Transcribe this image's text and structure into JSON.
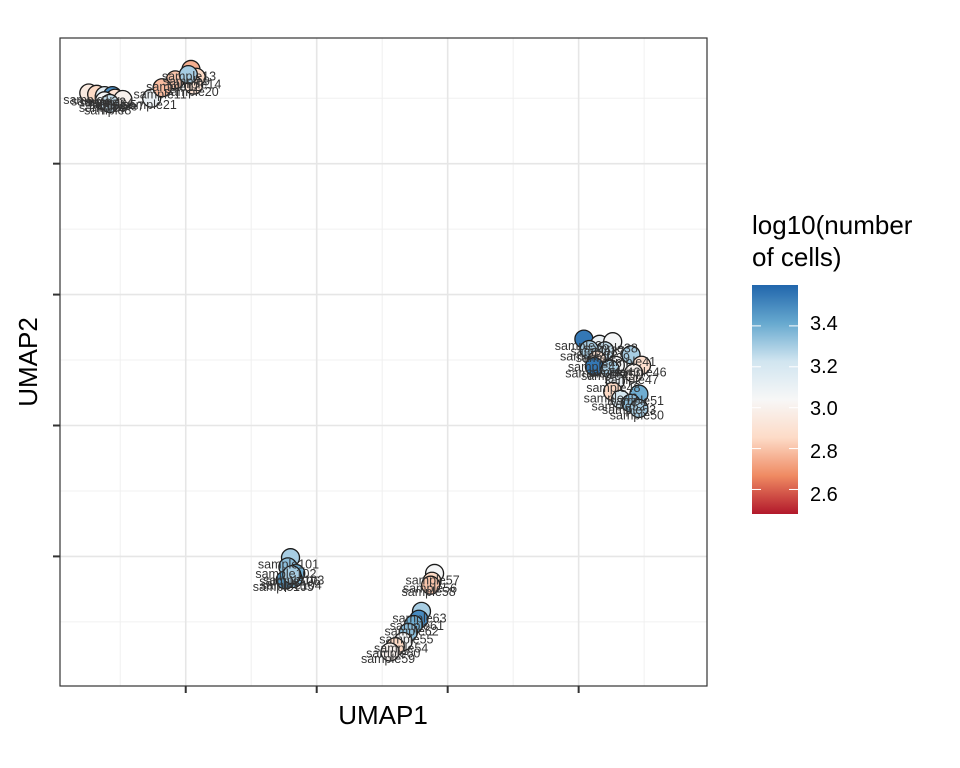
{
  "chart_data": {
    "type": "scatter",
    "xlabel": "UMAP1",
    "ylabel": "UMAP2",
    "title": "",
    "xlim": [
      -9.6,
      15.1
    ],
    "ylim": [
      -12.85,
      11.9
    ],
    "x_ticks": [
      -4.8,
      0.2,
      5.2,
      10.2
    ],
    "y_ticks": [
      -7.9,
      -2.9,
      2.1,
      7.1
    ],
    "grid": true,
    "legend": {
      "title_lines": [
        "log10(number",
        "of cells)"
      ],
      "position": "right",
      "colorbar_min": 2.48,
      "colorbar_max": 3.6,
      "ticks": [
        "3.4",
        "3.2",
        "3.0",
        "2.8",
        "2.6"
      ],
      "colors": [
        "#b2182b",
        "#ef8a62",
        "#fddbc7",
        "#f7f7f7",
        "#d1e5f0",
        "#67a9cf",
        "#2166ac"
      ]
    },
    "points": [
      {
        "label": "sample13",
        "x": -4.6,
        "y": 10.7,
        "value": 2.75
      },
      {
        "label": "sample14",
        "x": -4.4,
        "y": 10.4,
        "value": 2.85
      },
      {
        "label": "sample20",
        "x": -4.5,
        "y": 10.1,
        "value": 2.9
      },
      {
        "label": "sample12",
        "x": -5.2,
        "y": 10.3,
        "value": 2.8
      },
      {
        "label": "sample21",
        "x": -6.1,
        "y": 9.6,
        "value": 3.1
      },
      {
        "label": "sample9",
        "x": -4.7,
        "y": 10.5,
        "value": 3.3
      },
      {
        "label": "sample11",
        "x": -5.7,
        "y": 10.0,
        "value": 2.78
      },
      {
        "label": "sample1",
        "x": -8.5,
        "y": 9.8,
        "value": 2.95
      },
      {
        "label": "sample2",
        "x": -8.2,
        "y": 9.75,
        "value": 2.85
      },
      {
        "label": "sample3",
        "x": -7.9,
        "y": 9.7,
        "value": 3.15
      },
      {
        "label": "sample4",
        "x": -7.6,
        "y": 9.7,
        "value": 3.5
      },
      {
        "label": "sample5",
        "x": -7.5,
        "y": 9.6,
        "value": 2.9
      },
      {
        "label": "sample6",
        "x": -7.9,
        "y": 9.5,
        "value": 3.05
      },
      {
        "label": "sample7",
        "x": -7.2,
        "y": 9.55,
        "value": 3.0
      },
      {
        "label": "sample8",
        "x": -7.7,
        "y": 9.4,
        "value": 3.25
      },
      {
        "label": "sample101",
        "x": -0.8,
        "y": -7.95,
        "value": 3.3
      },
      {
        "label": "sample102",
        "x": -0.9,
        "y": -8.3,
        "value": 3.35
      },
      {
        "label": "sample103",
        "x": -0.6,
        "y": -8.55,
        "value": 3.4
      },
      {
        "label": "sample104",
        "x": -0.7,
        "y": -8.75,
        "value": 3.35
      },
      {
        "label": "sample105",
        "x": -1.0,
        "y": -8.8,
        "value": 3.45
      },
      {
        "label": "sample106",
        "x": -0.75,
        "y": -8.6,
        "value": 3.3
      },
      {
        "label": "sample57",
        "x": 4.7,
        "y": -8.55,
        "value": 3.05
      },
      {
        "label": "sample56",
        "x": 4.6,
        "y": -8.85,
        "value": 2.85
      },
      {
        "label": "sample58",
        "x": 4.55,
        "y": -9.0,
        "value": 2.8
      },
      {
        "label": "sample63",
        "x": 4.2,
        "y": -10.0,
        "value": 3.3
      },
      {
        "label": "sample61",
        "x": 4.1,
        "y": -10.3,
        "value": 3.5
      },
      {
        "label": "sample62",
        "x": 3.9,
        "y": -10.5,
        "value": 3.4
      },
      {
        "label": "sample55",
        "x": 3.7,
        "y": -10.8,
        "value": 3.35
      },
      {
        "label": "sample54",
        "x": 3.5,
        "y": -11.15,
        "value": 3.05
      },
      {
        "label": "sample60",
        "x": 3.2,
        "y": -11.35,
        "value": 2.85
      },
      {
        "label": "sample59",
        "x": 3.0,
        "y": -11.55,
        "value": 3.0
      },
      {
        "label": "sample36",
        "x": 10.4,
        "y": 0.4,
        "value": 3.55
      },
      {
        "label": "sample37",
        "x": 11.0,
        "y": 0.2,
        "value": 3.1
      },
      {
        "label": "sample38",
        "x": 11.5,
        "y": 0.3,
        "value": 3.05
      },
      {
        "label": "sample39",
        "x": 11.2,
        "y": -0.05,
        "value": 3.25
      },
      {
        "label": "sample40",
        "x": 10.6,
        "y": 0.0,
        "value": 3.3
      },
      {
        "label": "sample41",
        "x": 12.2,
        "y": -0.2,
        "value": 3.3
      },
      {
        "label": "sample42",
        "x": 10.9,
        "y": -0.4,
        "value": 2.9
      },
      {
        "label": "sample43",
        "x": 11.6,
        "y": -0.6,
        "value": 3.05
      },
      {
        "label": "sample44",
        "x": 10.8,
        "y": -0.65,
        "value": 3.55
      },
      {
        "label": "sample45",
        "x": 11.4,
        "y": -0.75,
        "value": 3.3
      },
      {
        "label": "sample46",
        "x": 12.6,
        "y": -0.6,
        "value": 2.88
      },
      {
        "label": "sample47",
        "x": 12.3,
        "y": -0.9,
        "value": 3.0
      },
      {
        "label": "sample48",
        "x": 11.6,
        "y": -1.2,
        "value": 3.1
      },
      {
        "label": "sample49",
        "x": 11.5,
        "y": -1.6,
        "value": 2.85
      },
      {
        "label": "sample51",
        "x": 12.5,
        "y": -1.7,
        "value": 3.4
      },
      {
        "label": "sample52",
        "x": 11.8,
        "y": -1.9,
        "value": 3.2
      },
      {
        "label": "sample53",
        "x": 12.2,
        "y": -2.05,
        "value": 3.35
      },
      {
        "label": "sample50",
        "x": 12.5,
        "y": -2.25,
        "value": 3.3
      }
    ]
  }
}
